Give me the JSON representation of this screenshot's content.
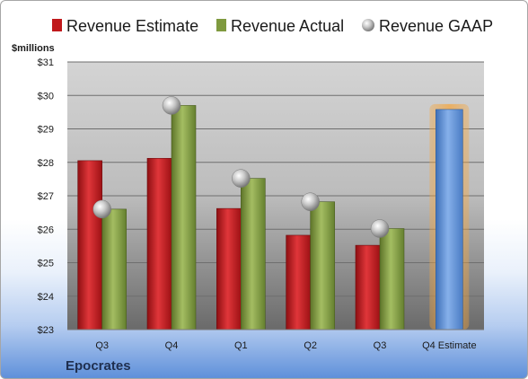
{
  "chart_data": {
    "type": "bar",
    "categories": [
      "Q3",
      "Q4",
      "Q1",
      "Q2",
      "Q3",
      "Q4 Estimate"
    ],
    "series": [
      {
        "name": "Revenue Estimate",
        "values": [
          28.05,
          28.12,
          26.62,
          25.82,
          25.52,
          null
        ]
      },
      {
        "name": "Revenue Actual",
        "values": [
          26.6,
          29.7,
          27.52,
          26.82,
          26.02,
          29.58
        ]
      },
      {
        "name": "Revenue GAAP",
        "values": [
          26.6,
          29.7,
          27.52,
          26.82,
          26.02,
          null
        ]
      }
    ],
    "ylabel": "$millions",
    "ylim": [
      23,
      31
    ],
    "yticks": [
      "$23",
      "$24",
      "$25",
      "$26",
      "$27",
      "$28",
      "$29",
      "$30",
      "$31"
    ],
    "company": "Epocrates",
    "legend_position": "top",
    "grid": true,
    "colors": {
      "estimate": "#c0191c",
      "actual": "#7f9a3f",
      "gaap": "#bfbfbf",
      "forecast": "#5b8fd6",
      "forecast_glow": "#f4a640"
    }
  }
}
